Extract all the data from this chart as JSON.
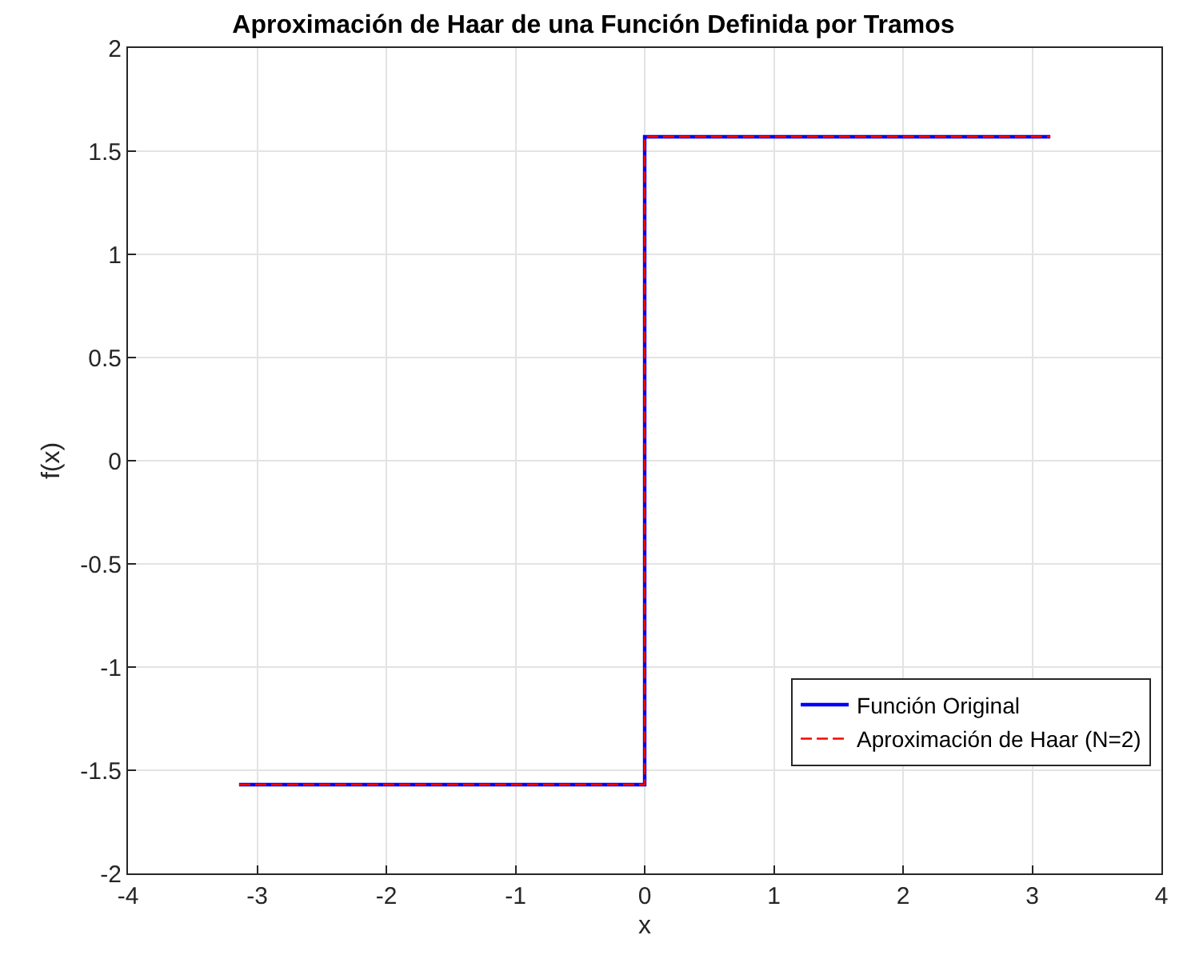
{
  "chart_data": {
    "type": "line",
    "title": "Aproximación de Haar de una Función Definida por Tramos",
    "xlabel": "x",
    "ylabel": "f(x)",
    "x": [
      -3.14,
      0,
      0,
      3.14
    ],
    "series": [
      {
        "name": "Función Original",
        "color": "#0000ff",
        "values": [
          -1.57,
          -1.57,
          1.57,
          1.57
        ],
        "line_style": "solid"
      },
      {
        "name": "Aproximación de Haar (N=2)",
        "color": "#ff0000",
        "values": [
          -1.57,
          -1.57,
          1.57,
          1.57
        ],
        "line_style": "dashed"
      }
    ],
    "xlim": [
      -4,
      4
    ],
    "xticks": [
      -4,
      -3,
      -2,
      -1,
      0,
      1,
      2,
      3,
      4
    ],
    "ylim": [
      -2,
      2
    ],
    "yticks": [
      -2,
      -1.5,
      -1,
      -0.5,
      0,
      0.5,
      1,
      1.5,
      2
    ],
    "grid": true,
    "legend": "bottom right",
    "marker": "none"
  }
}
